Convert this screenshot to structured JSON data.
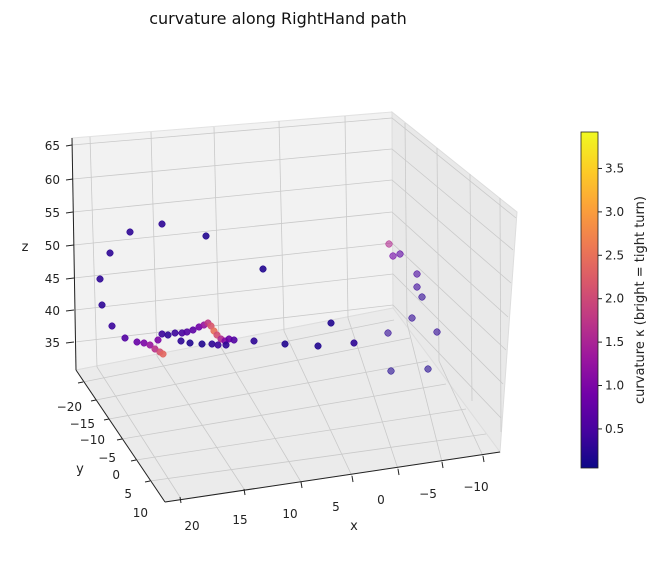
{
  "chart_data": {
    "type": "scatter3d",
    "title": "curvature along RightHand path",
    "xlabel": "x",
    "ylabel": "y",
    "zlabel": "z",
    "x_ticks": [
      "20",
      "15",
      "10",
      "5",
      "0",
      "−5",
      "−10"
    ],
    "y_ticks": [
      "−20",
      "−15",
      "−10",
      "−5",
      "0",
      "5",
      "10"
    ],
    "z_ticks": [
      "35",
      "40",
      "45",
      "50",
      "55",
      "60",
      "65"
    ],
    "colorbar": {
      "label": "curvature κ  (bright = tight turn)",
      "ticks": [
        "0.5",
        "1.0",
        "1.5",
        "2.0",
        "2.5",
        "3.0",
        "3.5"
      ],
      "range": [
        0.05,
        3.92
      ],
      "colormap": [
        "#0d0887",
        "#46039f",
        "#7201a8",
        "#9c179e",
        "#bd3786",
        "#d8576b",
        "#ed7953",
        "#fb9f3a",
        "#fdca26",
        "#f0f921"
      ]
    },
    "points_projected": [
      [
        130,
        232,
        0.3
      ],
      [
        162,
        224,
        0.3
      ],
      [
        206,
        236,
        0.2
      ],
      [
        110,
        253,
        0.3
      ],
      [
        100,
        279,
        0.3
      ],
      [
        102,
        305,
        0.3
      ],
      [
        112,
        326,
        0.4
      ],
      [
        125,
        338,
        0.6
      ],
      [
        137,
        342,
        0.8
      ],
      [
        144,
        343,
        1.0
      ],
      [
        150,
        345,
        1.3
      ],
      [
        155,
        349,
        1.7
      ],
      [
        160,
        352,
        2.1
      ],
      [
        163,
        354,
        2.4
      ],
      [
        158,
        340,
        1.0
      ],
      [
        162,
        334,
        0.4
      ],
      [
        168,
        335,
        0.3
      ],
      [
        175,
        333,
        0.4
      ],
      [
        182,
        333,
        0.5
      ],
      [
        187,
        332,
        0.6
      ],
      [
        193,
        330,
        0.7
      ],
      [
        199,
        327,
        0.9
      ],
      [
        204,
        325,
        1.3
      ],
      [
        208,
        323,
        1.8
      ],
      [
        211,
        326,
        2.2
      ],
      [
        214,
        331,
        2.5
      ],
      [
        217,
        335,
        2.1
      ],
      [
        221,
        339,
        1.6
      ],
      [
        225,
        341,
        1.1
      ],
      [
        229,
        339,
        0.8
      ],
      [
        234,
        340,
        0.6
      ],
      [
        181,
        341,
        0.3
      ],
      [
        190,
        343,
        0.2
      ],
      [
        202,
        344,
        0.2
      ],
      [
        212,
        344,
        0.3
      ],
      [
        218,
        345,
        0.4
      ],
      [
        226,
        345,
        0.3
      ],
      [
        254,
        341,
        0.3
      ],
      [
        285,
        344,
        0.2
      ],
      [
        318,
        346,
        0.2
      ],
      [
        354,
        343,
        0.3
      ],
      [
        331,
        323,
        0.2
      ],
      [
        263,
        269,
        0.2
      ],
      [
        389,
        244,
        1.6
      ],
      [
        393,
        256,
        0.9
      ],
      [
        400,
        254,
        0.7
      ],
      [
        417,
        274,
        0.5
      ],
      [
        417,
        287,
        0.4
      ],
      [
        422,
        297,
        0.3
      ],
      [
        412,
        318,
        0.3
      ],
      [
        437,
        332,
        0.3
      ],
      [
        388,
        333,
        0.3
      ],
      [
        391,
        371,
        0.2
      ],
      [
        428,
        369,
        0.2
      ]
    ]
  }
}
